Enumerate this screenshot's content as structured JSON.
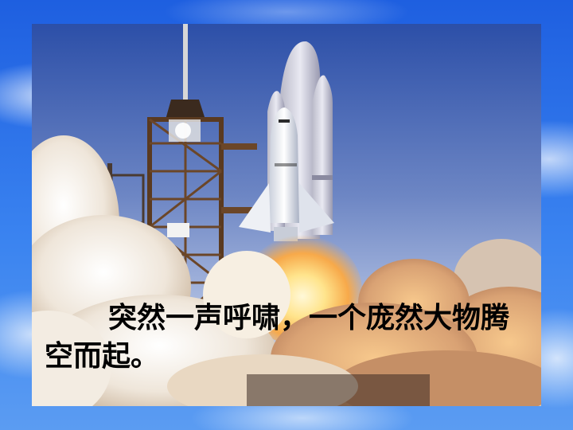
{
  "slide": {
    "caption": "突然一声呼啸，一个庞然大物腾空而起。"
  },
  "image": {
    "subject": "space-shuttle-launch",
    "colors": {
      "frame_sky": "#2f6fe8",
      "photo_sky_top": "#2c4fa8",
      "photo_sky_bottom": "#b9c7e6",
      "smoke": "#f4eee6",
      "flame": "#ffd36a",
      "tower": "#5a3a20"
    }
  }
}
